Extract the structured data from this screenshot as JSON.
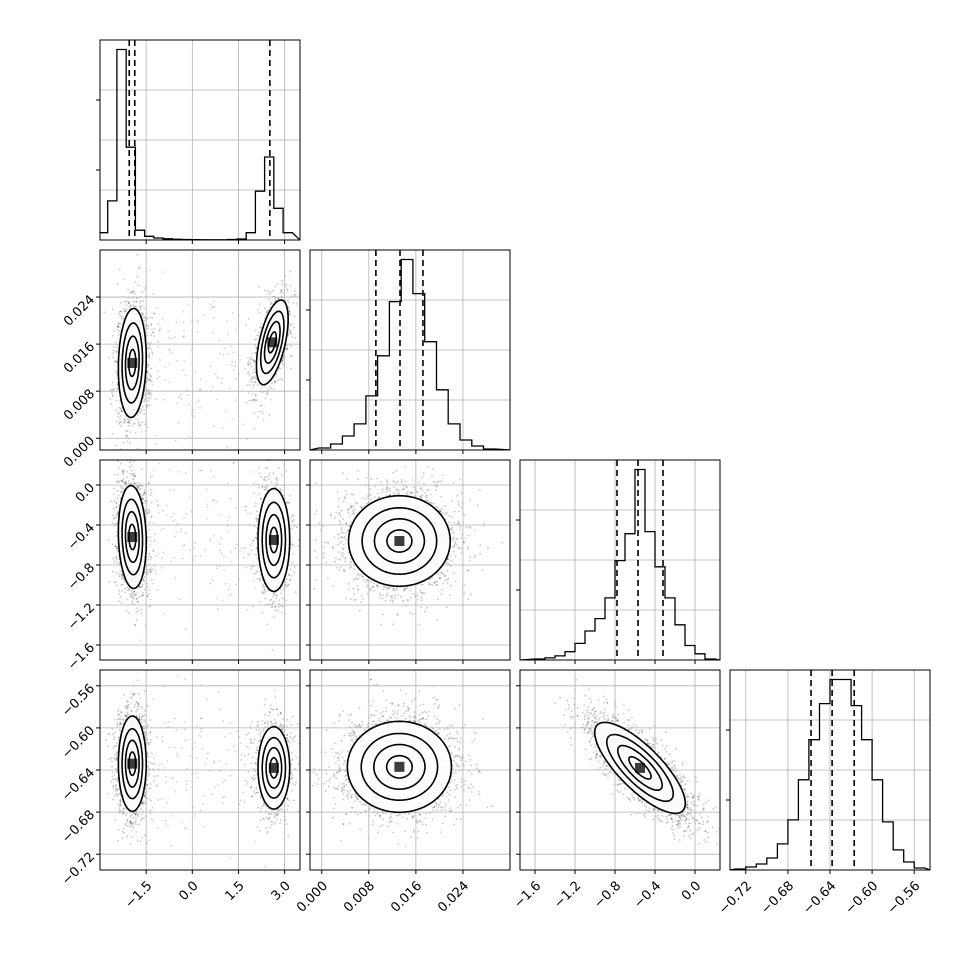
{
  "chart_data": {
    "type": "corner",
    "grid": true,
    "params": [
      {
        "range": [
          -3.0,
          3.5
        ],
        "ticks": [
          "−1.5",
          "0.0",
          "1.5",
          "3.0"
        ],
        "tick_values": [
          -1.5,
          0.0,
          1.5,
          3.0
        ],
        "histogram": [
          [
            -2.9,
            0.03
          ],
          [
            -2.6,
            0.16
          ],
          [
            -2.3,
            0.78
          ],
          [
            -2.0,
            0.38
          ],
          [
            -1.7,
            0.04
          ],
          [
            -1.4,
            0.015
          ],
          [
            -1.1,
            0.008
          ],
          [
            -0.8,
            0.005
          ],
          [
            -0.5,
            0.003
          ],
          [
            -0.2,
            0.002
          ],
          [
            0.1,
            0.0015
          ],
          [
            0.4,
            0.001
          ],
          [
            0.7,
            0.001
          ],
          [
            1.0,
            0.001
          ],
          [
            1.3,
            0.002
          ],
          [
            1.6,
            0.004
          ],
          [
            1.9,
            0.03
          ],
          [
            2.2,
            0.2
          ],
          [
            2.5,
            0.34
          ],
          [
            2.8,
            0.13
          ],
          [
            3.1,
            0.03
          ]
        ],
        "quantiles": [
          -2.05,
          -1.87,
          2.52
        ]
      },
      {
        "range": [
          -0.002,
          0.032
        ],
        "ticks": [
          "0.000",
          "0.008",
          "0.016",
          "0.024"
        ],
        "tick_values": [
          0.0,
          0.008,
          0.016,
          0.024
        ],
        "histogram": [
          [
            0.0005,
            0.01
          ],
          [
            0.0025,
            0.03
          ],
          [
            0.0045,
            0.07
          ],
          [
            0.0065,
            0.13
          ],
          [
            0.0085,
            0.27
          ],
          [
            0.0105,
            0.47
          ],
          [
            0.0125,
            0.74
          ],
          [
            0.0145,
            0.95
          ],
          [
            0.0165,
            0.78
          ],
          [
            0.0185,
            0.54
          ],
          [
            0.0205,
            0.3
          ],
          [
            0.0225,
            0.13
          ],
          [
            0.0245,
            0.05
          ],
          [
            0.0265,
            0.02
          ],
          [
            0.0285,
            0.005
          ]
        ],
        "quantiles": [
          0.0092,
          0.0133,
          0.0172
        ]
      },
      {
        "range": [
          -1.75,
          0.25
        ],
        "ticks": [
          "−1.6",
          "−1.2",
          "−0.8",
          "−0.4",
          "0.0"
        ],
        "tick_values": [
          -1.6,
          -1.2,
          -0.8,
          -0.4,
          0.0
        ],
        "histogram": [
          [
            -1.55,
            0.005
          ],
          [
            -1.45,
            0.01
          ],
          [
            -1.35,
            0.02
          ],
          [
            -1.25,
            0.04
          ],
          [
            -1.15,
            0.08
          ],
          [
            -1.05,
            0.14
          ],
          [
            -0.95,
            0.2
          ],
          [
            -0.85,
            0.3
          ],
          [
            -0.75,
            0.48
          ],
          [
            -0.65,
            0.61
          ],
          [
            -0.55,
            0.92
          ],
          [
            -0.45,
            0.62
          ],
          [
            -0.35,
            0.45
          ],
          [
            -0.25,
            0.3
          ],
          [
            -0.15,
            0.17
          ],
          [
            -0.05,
            0.07
          ],
          [
            0.05,
            0.03
          ],
          [
            0.15,
            0.005
          ]
        ],
        "quantiles": [
          -0.78,
          -0.57,
          -0.32
        ]
      },
      {
        "range": [
          -0.735,
          -0.545
        ],
        "ticks": [
          "−0.72",
          "−0.68",
          "−0.64",
          "−0.60",
          "−0.56"
        ],
        "tick_values": [
          -0.72,
          -0.68,
          -0.64,
          -0.6,
          -0.56
        ],
        "histogram": [
          [
            -0.725,
            0.005
          ],
          [
            -0.715,
            0.015
          ],
          [
            -0.705,
            0.03
          ],
          [
            -0.695,
            0.06
          ],
          [
            -0.685,
            0.13
          ],
          [
            -0.675,
            0.25
          ],
          [
            -0.665,
            0.45
          ],
          [
            -0.655,
            0.65
          ],
          [
            -0.645,
            0.83
          ],
          [
            -0.635,
            0.95
          ],
          [
            -0.625,
            0.95
          ],
          [
            -0.615,
            0.82
          ],
          [
            -0.605,
            0.65
          ],
          [
            -0.595,
            0.45
          ],
          [
            -0.585,
            0.24
          ],
          [
            -0.575,
            0.1
          ],
          [
            -0.565,
            0.04
          ],
          [
            -0.555,
            0.01
          ]
        ],
        "quantiles": [
          -0.658,
          -0.638,
          -0.617
        ]
      }
    ],
    "pairs": [
      {
        "row": 1,
        "col": 0,
        "blobs": [
          {
            "cx": -1.95,
            "cy": 0.0128,
            "sx": 0.22,
            "sy": 0.0045,
            "rho": 0.1,
            "w": 0.62
          },
          {
            "cx": 2.6,
            "cy": 0.0163,
            "sx": 0.25,
            "sy": 0.0035,
            "rho": 0.55,
            "w": 0.38
          }
        ]
      },
      {
        "row": 2,
        "col": 0,
        "blobs": [
          {
            "cx": -1.95,
            "cy": -0.52,
            "sx": 0.22,
            "sy": 0.25,
            "rho": -0.1,
            "w": 0.62
          },
          {
            "cx": 2.65,
            "cy": -0.55,
            "sx": 0.25,
            "sy": 0.25,
            "rho": 0.0,
            "w": 0.38
          }
        ]
      },
      {
        "row": 2,
        "col": 1,
        "blobs": [
          {
            "cx": 0.0132,
            "cy": -0.56,
            "sx": 0.0042,
            "sy": 0.22,
            "rho": 0.0,
            "w": 1.0
          }
        ]
      },
      {
        "row": 3,
        "col": 0,
        "blobs": [
          {
            "cx": -1.95,
            "cy": -0.634,
            "sx": 0.22,
            "sy": 0.022,
            "rho": 0.0,
            "w": 0.62
          },
          {
            "cx": 2.65,
            "cy": -0.638,
            "sx": 0.25,
            "sy": 0.019,
            "rho": 0.0,
            "w": 0.38
          }
        ]
      },
      {
        "row": 3,
        "col": 1,
        "blobs": [
          {
            "cx": 0.0132,
            "cy": -0.637,
            "sx": 0.0043,
            "sy": 0.021,
            "rho": 0.0,
            "w": 1.0
          }
        ]
      },
      {
        "row": 3,
        "col": 2,
        "blobs": [
          {
            "cx": -0.55,
            "cy": -0.638,
            "sx": 0.22,
            "sy": 0.021,
            "rho": -0.78,
            "w": 1.0
          }
        ]
      }
    ]
  }
}
